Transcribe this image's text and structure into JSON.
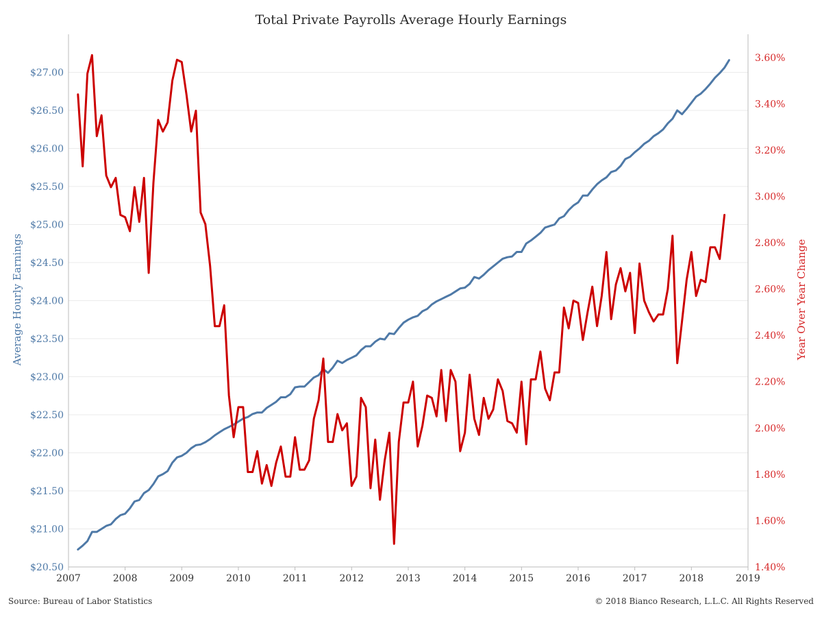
{
  "title": "Total Private Payrolls Average Hourly Earnings",
  "footer": {
    "source": "Source: Bureau of Labor Statistics",
    "copyright": "© 2018 Bianco Research, L.L.C. All Rights Reserved"
  },
  "colors": {
    "earnings": "#4e79a7",
    "yoy": "#cc0000",
    "grid": "#ebebeb",
    "axis": "#bbbbbb"
  },
  "chart_data": {
    "type": "line",
    "grid": "horizontal",
    "x_axis": {
      "ticks": [
        "2007",
        "2008",
        "2009",
        "2010",
        "2011",
        "2012",
        "2013",
        "2014",
        "2015",
        "2016",
        "2017",
        "2018",
        "2019"
      ],
      "range": [
        2007,
        2019
      ]
    },
    "y_left": {
      "label": "Average Hourly Earnings",
      "range": [
        20.5,
        27.5
      ],
      "ticks": [
        20.5,
        21,
        21.5,
        22,
        22.5,
        23,
        23.5,
        24,
        24.5,
        25,
        25.5,
        26,
        26.5,
        27
      ],
      "tick_labels": [
        "$20.50",
        "$21.00",
        "$21.50",
        "$22.00",
        "$22.50",
        "$23.00",
        "$23.50",
        "$24.00",
        "$24.50",
        "$25.00",
        "$25.50",
        "$26.00",
        "$26.50",
        "$27.00"
      ]
    },
    "y_right": {
      "label": "Year Over Year Change",
      "range": [
        1.4,
        3.7
      ],
      "ticks": [
        1.4,
        1.6,
        1.8,
        2.0,
        2.2,
        2.4,
        2.6,
        2.8,
        3.0,
        3.2,
        3.4,
        3.6
      ],
      "tick_labels": [
        "1.40%",
        "1.60%",
        "1.80%",
        "2.00%",
        "2.20%",
        "2.40%",
        "2.60%",
        "2.80%",
        "3.00%",
        "3.20%",
        "3.40%",
        "3.60%"
      ]
    },
    "series": [
      {
        "key": "earnings",
        "axis": "left",
        "start": "2007-03",
        "values": [
          20.73,
          20.78,
          20.84,
          20.96,
          20.96,
          21.0,
          21.04,
          21.06,
          21.13,
          21.18,
          21.2,
          21.27,
          21.36,
          21.38,
          21.47,
          21.51,
          21.59,
          21.69,
          21.72,
          21.76,
          21.87,
          21.94,
          21.96,
          22.0,
          22.06,
          22.1,
          22.11,
          22.14,
          22.18,
          22.23,
          22.27,
          22.31,
          22.34,
          22.37,
          22.41,
          22.45,
          22.47,
          22.51,
          22.53,
          22.53,
          22.59,
          22.63,
          22.67,
          22.73,
          22.73,
          22.77,
          22.86,
          22.87,
          22.87,
          22.93,
          22.99,
          23.02,
          23.1,
          23.05,
          23.12,
          23.21,
          23.18,
          23.22,
          23.25,
          23.28,
          23.35,
          23.4,
          23.4,
          23.46,
          23.5,
          23.49,
          23.57,
          23.56,
          23.64,
          23.71,
          23.75,
          23.78,
          23.8,
          23.86,
          23.89,
          23.95,
          23.99,
          24.02,
          24.05,
          24.08,
          24.12,
          24.16,
          24.17,
          24.22,
          24.31,
          24.29,
          24.34,
          24.4,
          24.45,
          24.5,
          24.55,
          24.57,
          24.58,
          24.64,
          24.64,
          24.75,
          24.79,
          24.84,
          24.89,
          24.96,
          24.98,
          25.0,
          25.08,
          25.11,
          25.19,
          25.25,
          25.29,
          25.38,
          25.38,
          25.46,
          25.53,
          25.58,
          25.62,
          25.69,
          25.71,
          25.77,
          25.86,
          25.89,
          25.95,
          26.0,
          26.06,
          26.1,
          26.16,
          26.2,
          26.25,
          26.33,
          26.39,
          26.5,
          26.45,
          26.52,
          26.6,
          26.68,
          26.72,
          26.78,
          26.85,
          26.93,
          26.99,
          27.06,
          27.16
        ]
      },
      {
        "key": "yoy",
        "axis": "right",
        "start": "2007-03",
        "values": [
          3.44,
          3.13,
          3.53,
          3.61,
          3.26,
          3.35,
          3.09,
          3.04,
          3.08,
          2.92,
          2.91,
          2.85,
          3.04,
          2.89,
          3.08,
          2.67,
          3.06,
          3.33,
          3.28,
          3.32,
          3.5,
          3.59,
          3.58,
          3.44,
          3.28,
          3.37,
          2.93,
          2.88,
          2.7,
          2.44,
          2.44,
          2.53,
          2.14,
          1.96,
          2.09,
          2.09,
          1.81,
          1.81,
          1.9,
          1.76,
          1.84,
          1.75,
          1.85,
          1.92,
          1.79,
          1.79,
          1.96,
          1.82,
          1.82,
          1.86,
          2.04,
          2.12,
          2.3,
          1.94,
          1.94,
          2.06,
          1.99,
          2.02,
          1.75,
          1.79,
          2.13,
          2.09,
          1.74,
          1.95,
          1.69,
          1.86,
          1.98,
          1.5,
          1.94,
          2.11,
          2.11,
          2.2,
          1.92,
          2.01,
          2.14,
          2.13,
          2.05,
          2.25,
          2.03,
          2.25,
          2.2,
          1.9,
          1.98,
          2.23,
          2.04,
          1.97,
          2.13,
          2.04,
          2.08,
          2.21,
          2.16,
          2.03,
          2.02,
          1.98,
          2.2,
          1.93,
          2.21,
          2.21,
          2.33,
          2.17,
          2.12,
          2.24,
          2.24,
          2.52,
          2.43,
          2.55,
          2.54,
          2.38,
          2.5,
          2.61,
          2.44,
          2.57,
          2.76,
          2.47,
          2.62,
          2.69,
          2.59,
          2.67,
          2.41,
          2.71,
          2.55,
          2.5,
          2.46,
          2.49,
          2.49,
          2.6,
          2.83,
          2.28,
          2.46,
          2.64,
          2.76,
          2.57,
          2.64,
          2.63,
          2.78,
          2.78,
          2.73,
          2.92
        ]
      }
    ]
  }
}
